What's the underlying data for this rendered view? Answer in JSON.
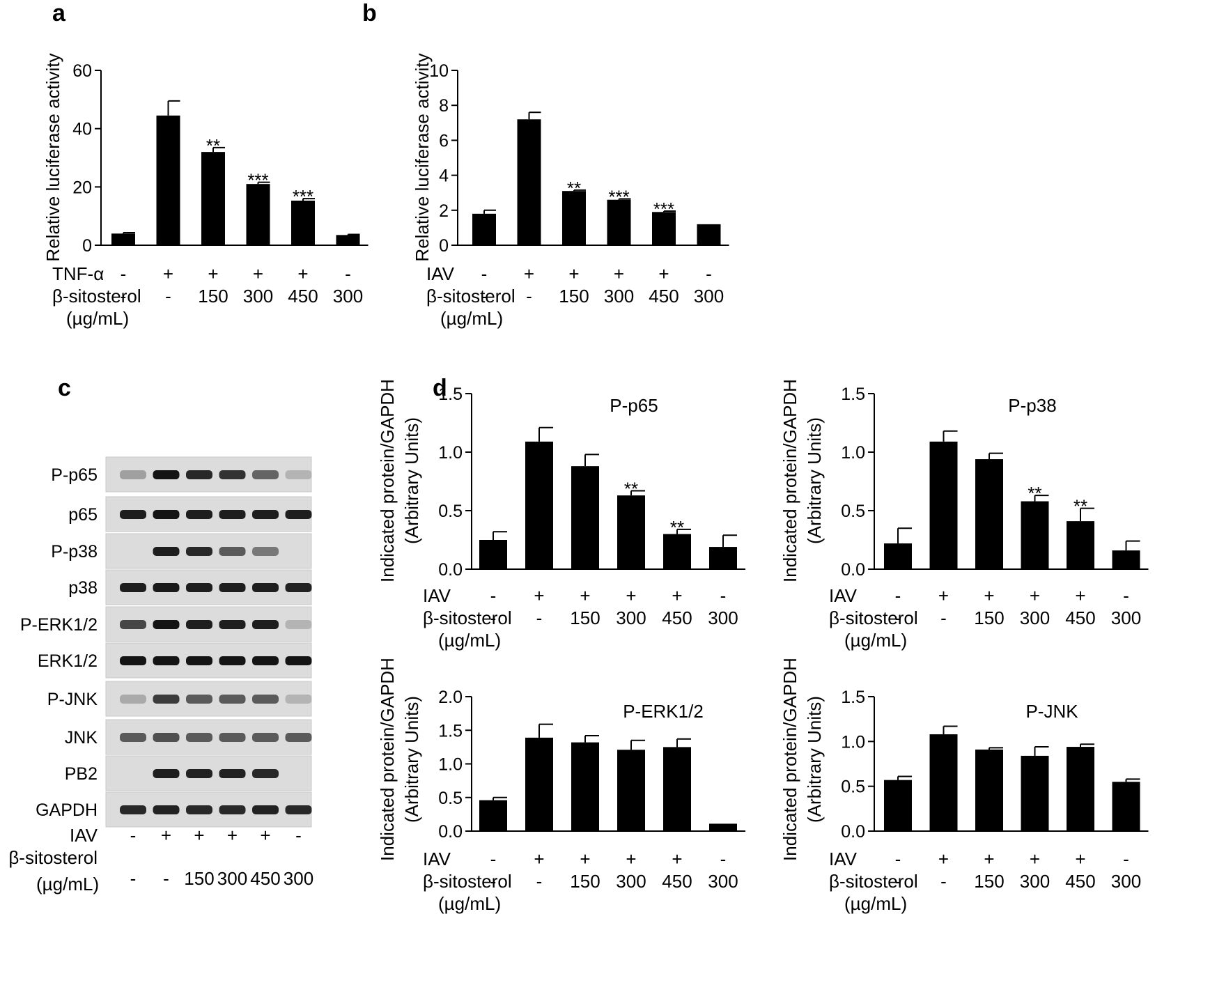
{
  "panel_letters": {
    "a": "a",
    "b": "b",
    "c": "c",
    "d": "d"
  },
  "row_labels": {
    "tnf": "TNF-α",
    "iav": "IAV",
    "sitosterol": "β-sitosterol",
    "unit": "(µg/mL)"
  },
  "chart_data": [
    {
      "id": "a",
      "type": "bar",
      "title": "",
      "ylabel": "Relative luciferase activity",
      "ylim": [
        0,
        60
      ],
      "yticks": [
        "0",
        "20",
        "40",
        "60"
      ],
      "categories": [
        "1",
        "2",
        "3",
        "4",
        "5",
        "6"
      ],
      "values": [
        4,
        44.5,
        32,
        21,
        15.3,
        3.5
      ],
      "errors": [
        0.3,
        5,
        1.5,
        0.6,
        0.7,
        0.2
      ],
      "significance": [
        "",
        "",
        "**",
        "***",
        "***",
        ""
      ],
      "condition_rows": [
        {
          "label": "TNF-α",
          "cells": [
            "-",
            "+",
            "+",
            "+",
            "+",
            "-"
          ]
        },
        {
          "label": "β-sitosterol",
          "cells": [
            "-",
            "-",
            "150",
            "300",
            "450",
            "300"
          ]
        }
      ]
    },
    {
      "id": "b",
      "type": "bar",
      "title": "",
      "ylabel": "Relative luciferase activity",
      "ylim": [
        0,
        10
      ],
      "yticks": [
        "0",
        "2",
        "4",
        "6",
        "8",
        "10"
      ],
      "categories": [
        "1",
        "2",
        "3",
        "4",
        "5",
        "6"
      ],
      "values": [
        1.8,
        7.2,
        3.1,
        2.6,
        1.9,
        1.2
      ],
      "errors": [
        0.2,
        0.4,
        0.05,
        0.05,
        0.05,
        0
      ],
      "significance": [
        "",
        "",
        "**",
        "***",
        "***",
        ""
      ],
      "condition_rows": [
        {
          "label": "IAV",
          "cells": [
            "-",
            "+",
            "+",
            "+",
            "+",
            "-"
          ]
        },
        {
          "label": "β-sitosterol",
          "cells": [
            "-",
            "-",
            "150",
            "300",
            "450",
            "300"
          ]
        }
      ]
    },
    {
      "id": "d1",
      "type": "bar",
      "title": "P-p65",
      "ylabel": "Indicated protein/GAPDH",
      "ylabel2": "(Arbitrary Units)",
      "ylim": [
        0,
        1.5
      ],
      "yticks": [
        "0.0",
        "0.5",
        "1.0",
        "1.5"
      ],
      "categories": [
        "1",
        "2",
        "3",
        "4",
        "5",
        "6"
      ],
      "values": [
        0.25,
        1.09,
        0.88,
        0.63,
        0.3,
        0.19
      ],
      "errors": [
        0.07,
        0.12,
        0.1,
        0.04,
        0.04,
        0.1
      ],
      "significance": [
        "",
        "",
        "",
        "**",
        "**",
        ""
      ],
      "condition_rows": [
        {
          "label": "IAV",
          "cells": [
            "-",
            "+",
            "+",
            "+",
            "+",
            "-"
          ]
        },
        {
          "label": "β-sitosterol",
          "cells": [
            "-",
            "-",
            "150",
            "300",
            "450",
            "300"
          ]
        }
      ]
    },
    {
      "id": "d2",
      "type": "bar",
      "title": "P-p38",
      "ylabel": "Indicated protein/GAPDH",
      "ylabel2": "(Arbitrary Units)",
      "ylim": [
        0,
        1.5
      ],
      "yticks": [
        "0.0",
        "0.5",
        "1.0",
        "1.5"
      ],
      "categories": [
        "1",
        "2",
        "3",
        "4",
        "5",
        "6"
      ],
      "values": [
        0.22,
        1.09,
        0.94,
        0.58,
        0.41,
        0.16
      ],
      "errors": [
        0.13,
        0.09,
        0.05,
        0.05,
        0.11,
        0.08
      ],
      "significance": [
        "",
        "",
        "",
        "**",
        "**",
        ""
      ],
      "condition_rows": [
        {
          "label": "IAV",
          "cells": [
            "-",
            "+",
            "+",
            "+",
            "+",
            "-"
          ]
        },
        {
          "label": "β-sitosterol",
          "cells": [
            "-",
            "-",
            "150",
            "300",
            "450",
            "300"
          ]
        }
      ]
    },
    {
      "id": "d3",
      "type": "bar",
      "title": "P-ERK1/2",
      "ylabel": "Indicated protein/GAPDH",
      "ylabel2": "(Arbitrary Units)",
      "ylim": [
        0,
        2.0
      ],
      "yticks": [
        "0.0",
        "0.5",
        "1.0",
        "1.5",
        "2.0"
      ],
      "categories": [
        "1",
        "2",
        "3",
        "4",
        "5",
        "6"
      ],
      "values": [
        0.46,
        1.39,
        1.32,
        1.21,
        1.25,
        0.11
      ],
      "errors": [
        0.04,
        0.2,
        0.1,
        0.14,
        0.12,
        0
      ],
      "significance": [
        "",
        "",
        "",
        "",
        "",
        ""
      ],
      "condition_rows": [
        {
          "label": "IAV",
          "cells": [
            "-",
            "+",
            "+",
            "+",
            "+",
            "-"
          ]
        },
        {
          "label": "β-sitosterol",
          "cells": [
            "-",
            "-",
            "150",
            "300",
            "450",
            "300"
          ]
        }
      ]
    },
    {
      "id": "d4",
      "type": "bar",
      "title": "P-JNK",
      "ylabel": "Indicated protein/GAPDH",
      "ylabel2": "(Arbitrary Units)",
      "ylim": [
        0,
        1.5
      ],
      "yticks": [
        "0.0",
        "0.5",
        "1.0",
        "1.5"
      ],
      "categories": [
        "1",
        "2",
        "3",
        "4",
        "5",
        "6"
      ],
      "values": [
        0.57,
        1.08,
        0.91,
        0.84,
        0.94,
        0.55
      ],
      "errors": [
        0.04,
        0.09,
        0.02,
        0.1,
        0.03,
        0.03
      ],
      "significance": [
        "",
        "",
        "",
        "",
        "",
        ""
      ],
      "condition_rows": [
        {
          "label": "IAV",
          "cells": [
            "-",
            "+",
            "+",
            "+",
            "+",
            "-"
          ]
        },
        {
          "label": "β-sitosterol",
          "cells": [
            "-",
            "-",
            "150",
            "300",
            "450",
            "300"
          ]
        }
      ]
    }
  ],
  "western_blot": {
    "bands": [
      {
        "label": "P-p65",
        "intensities": [
          0.25,
          0.95,
          0.85,
          0.8,
          0.55,
          0.15
        ]
      },
      {
        "label": "p65",
        "intensities": [
          0.9,
          0.95,
          0.9,
          0.9,
          0.9,
          0.9
        ]
      },
      {
        "label": "P-p38",
        "intensities": [
          0,
          0.9,
          0.85,
          0.6,
          0.45,
          0
        ]
      },
      {
        "label": "p38",
        "intensities": [
          0.9,
          0.92,
          0.9,
          0.9,
          0.9,
          0.88
        ]
      },
      {
        "label": "P-ERK1/2",
        "intensities": [
          0.7,
          0.95,
          0.9,
          0.9,
          0.9,
          0.15
        ]
      },
      {
        "label": "ERK1/2",
        "intensities": [
          0.95,
          0.95,
          0.95,
          0.95,
          0.95,
          0.95
        ]
      },
      {
        "label": "P-JNK",
        "intensities": [
          0.2,
          0.75,
          0.6,
          0.6,
          0.6,
          0.15
        ]
      },
      {
        "label": "JNK",
        "intensities": [
          0.6,
          0.65,
          0.6,
          0.6,
          0.6,
          0.6
        ]
      },
      {
        "label": "PB2",
        "intensities": [
          0,
          0.9,
          0.88,
          0.88,
          0.85,
          0
        ]
      },
      {
        "label": "GAPDH",
        "intensities": [
          0.85,
          0.88,
          0.85,
          0.85,
          0.88,
          0.85
        ]
      }
    ],
    "conditions": [
      {
        "label": "IAV",
        "cells": [
          "-",
          "+",
          "+",
          "+",
          "+",
          "-"
        ]
      },
      {
        "label": "β-sitosterol",
        "cells": [
          "-",
          "-",
          "150",
          "300",
          "450",
          "300"
        ]
      }
    ],
    "unit": "(µg/mL)"
  }
}
